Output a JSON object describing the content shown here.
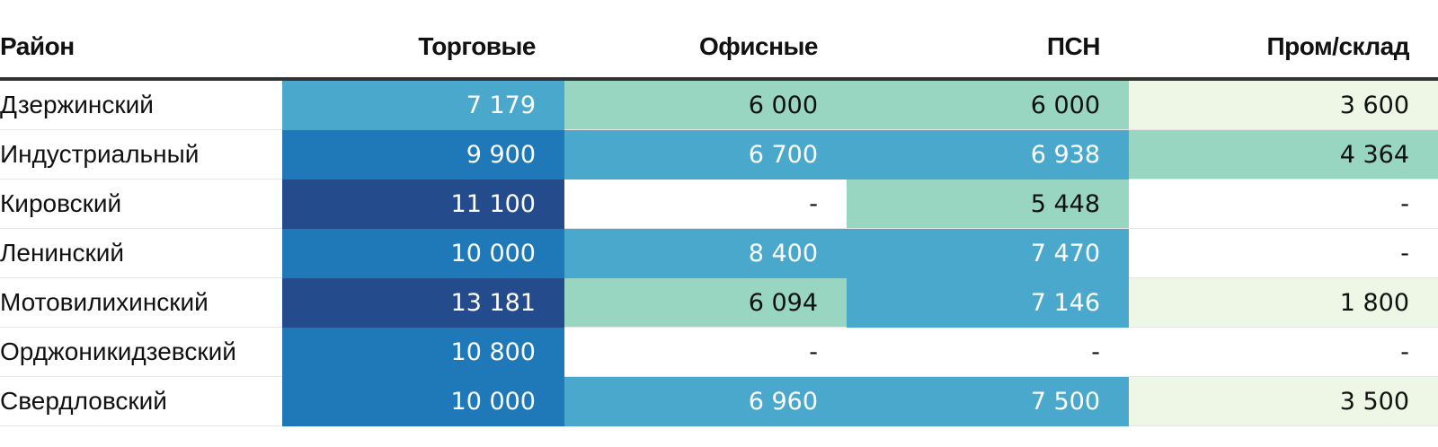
{
  "chart_data": {
    "type": "table",
    "columns": [
      "Район",
      "Торговые",
      "Офисные",
      "ПСН",
      "Пром/склад"
    ],
    "rows": [
      {
        "district": "Дзержинский",
        "values": [
          "7 179",
          "6 000",
          "6 000",
          "3 600"
        ]
      },
      {
        "district": "Индустриальный",
        "values": [
          "9 900",
          "6 700",
          "6 938",
          "4 364"
        ]
      },
      {
        "district": "Кировский",
        "values": [
          "11 100",
          "-",
          "5 448",
          "-"
        ]
      },
      {
        "district": "Ленинский",
        "values": [
          "10 000",
          "8 400",
          "7 470",
          "-"
        ]
      },
      {
        "district": "Мотовилихинский",
        "values": [
          "13 181",
          "6 094",
          "7 146",
          "1 800"
        ]
      },
      {
        "district": "Орджоникидзевский",
        "values": [
          "10 800",
          "-",
          "-",
          "-"
        ]
      },
      {
        "district": "Свердловский",
        "values": [
          "10 000",
          "6 960",
          "7 500",
          "3 500"
        ]
      }
    ],
    "color_scale": [
      {
        "max": 4000,
        "color": "#eef7e6",
        "text": "#111111"
      },
      {
        "max": 6500,
        "color": "#98d6c1",
        "text": "#111111"
      },
      {
        "max": 9000,
        "color": "#4aa8cc",
        "text": "#ffffff"
      },
      {
        "max": 11000,
        "color": "#1f78b8",
        "text": "#ffffff"
      },
      {
        "max": 999999,
        "color": "#244b8c",
        "text": "#ffffff"
      }
    ],
    "empty_color": "#ffffff"
  }
}
